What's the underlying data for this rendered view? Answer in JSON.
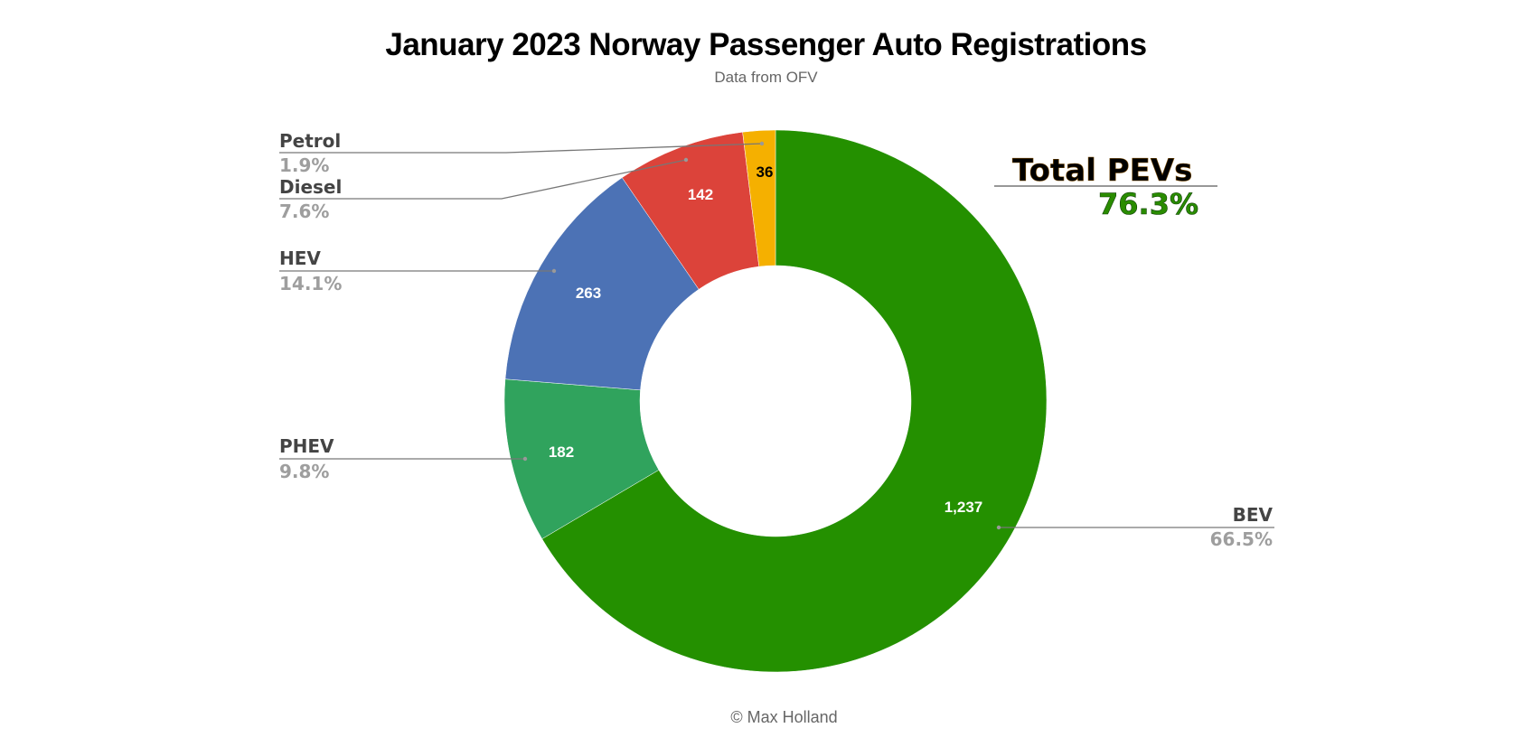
{
  "chart_data": {
    "type": "pie",
    "subtype": "donut",
    "title": "January 2023 Norway Passenger Auto Registrations",
    "subtitle": "Data from OFV",
    "credit": "© Max Holland",
    "slices": [
      {
        "name": "BEV",
        "value": 1237,
        "value_label": "1,237",
        "percent_label": "66.5%",
        "color": "#249000",
        "value_color": "#ffffff"
      },
      {
        "name": "PHEV",
        "value": 182,
        "value_label": "182",
        "percent_label": "9.8%",
        "color": "#30a35d",
        "value_color": "#ffffff"
      },
      {
        "name": "HEV",
        "value": 263,
        "value_label": "263",
        "percent_label": "14.1%",
        "color": "#4c72b5",
        "value_color": "#ffffff"
      },
      {
        "name": "Diesel",
        "value": 142,
        "value_label": "142",
        "percent_label": "7.6%",
        "color": "#dc433a",
        "value_color": "#ffffff"
      },
      {
        "name": "Petrol",
        "value": 36,
        "value_label": "36",
        "percent_label": "1.9%",
        "color": "#f5b000",
        "value_color": "#000000"
      }
    ],
    "annotation": {
      "title": "Total PEVs",
      "value": "76.3%"
    }
  }
}
